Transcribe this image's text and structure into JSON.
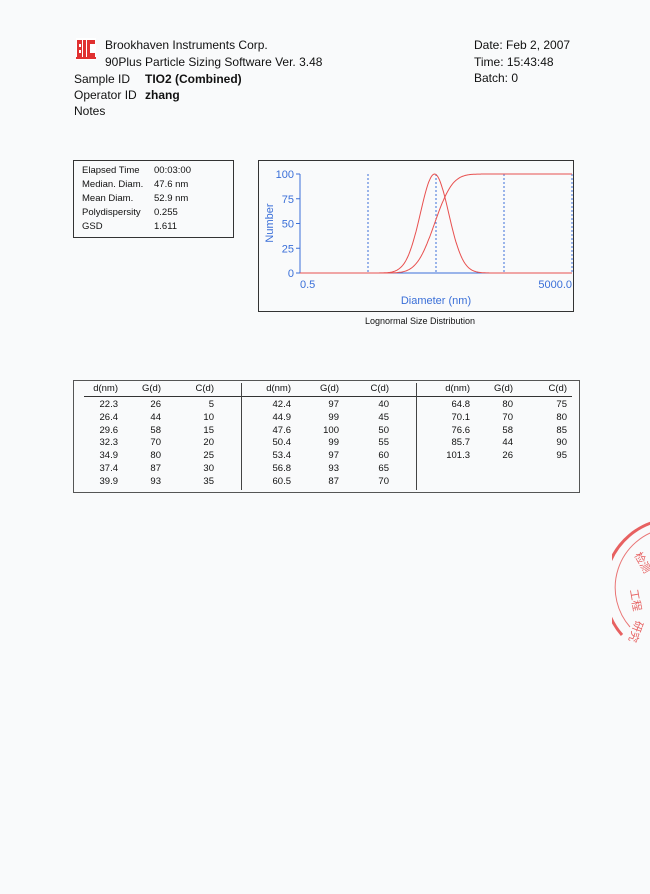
{
  "header": {
    "logo_text": "BIC",
    "company": "Brookhaven Instruments Corp.",
    "software": "90Plus Particle Sizing Software Ver. 3.48",
    "date": "Date: Feb 2, 2007",
    "time": "Time: 15:43:48",
    "batch": "Batch: 0",
    "sample_id_label": "Sample ID",
    "sample_id": "TIO2 (Combined)",
    "operator_id_label": "Operator ID",
    "operator_id": "zhang",
    "notes_label": "Notes"
  },
  "stats": [
    {
      "label": "Elapsed Time",
      "value": "00:03:00"
    },
    {
      "label": "Median. Diam.",
      "value": "47.6 nm"
    },
    {
      "label": "Mean Diam.",
      "value": "52.9 nm"
    },
    {
      "label": "Polydispersity",
      "value": "0.255"
    },
    {
      "label": "GSD",
      "value": "1.611"
    }
  ],
  "chart_data": {
    "type": "line",
    "title": "Lognormal Size Distribution",
    "xlabel": "Diameter (nm)",
    "ylabel": "Number",
    "x_scale": "log",
    "xlim": [
      0.5,
      5000.0
    ],
    "ylim": [
      0,
      100
    ],
    "x_tick_labels": [
      "0.5",
      "5000.0"
    ],
    "y_ticks": [
      "0",
      "25",
      "50",
      "75",
      "100"
    ],
    "x_gridlines": [
      5,
      50,
      500,
      5000
    ],
    "grid": "vertical dotted",
    "distribution": {
      "median": 47.6,
      "gsd": 1.611
    },
    "series": [
      {
        "key": "G(d)",
        "x": [
          22.3,
          26.4,
          29.6,
          32.3,
          34.9,
          37.4,
          39.9,
          42.4,
          44.9,
          47.6,
          50.4,
          53.4,
          56.8,
          60.5,
          64.8,
          70.1,
          76.6,
          85.7,
          101.3
        ],
        "values": [
          26,
          44,
          58,
          70,
          80,
          87,
          93,
          97,
          99,
          100,
          99,
          97,
          93,
          87,
          80,
          70,
          58,
          44,
          26
        ]
      },
      {
        "key": "C(d)",
        "x": [
          22.3,
          26.4,
          29.6,
          32.3,
          34.9,
          37.4,
          39.9,
          42.4,
          44.9,
          47.6,
          50.4,
          53.4,
          56.8,
          60.5,
          64.8,
          70.1,
          76.6,
          85.7,
          101.3
        ],
        "values": [
          5,
          10,
          15,
          20,
          25,
          30,
          35,
          40,
          45,
          50,
          55,
          60,
          65,
          70,
          75,
          80,
          85,
          90,
          95
        ]
      }
    ],
    "colors": {
      "axis": "#3a6fd8",
      "curve": "#e8504f"
    }
  },
  "table": {
    "headers": [
      "d(nm)",
      "G(d)",
      "C(d)"
    ],
    "groups": [
      [
        [
          "22.3",
          "26",
          "5"
        ],
        [
          "26.4",
          "44",
          "10"
        ],
        [
          "29.6",
          "58",
          "15"
        ],
        [
          "32.3",
          "70",
          "20"
        ],
        [
          "34.9",
          "80",
          "25"
        ],
        [
          "37.4",
          "87",
          "30"
        ],
        [
          "39.9",
          "93",
          "35"
        ]
      ],
      [
        [
          "42.4",
          "97",
          "40"
        ],
        [
          "44.9",
          "99",
          "45"
        ],
        [
          "47.6",
          "100",
          "50"
        ],
        [
          "50.4",
          "99",
          "55"
        ],
        [
          "53.4",
          "97",
          "60"
        ],
        [
          "56.8",
          "93",
          "65"
        ],
        [
          "60.5",
          "87",
          "70"
        ]
      ],
      [
        [
          "64.8",
          "80",
          "75"
        ],
        [
          "70.1",
          "70",
          "80"
        ],
        [
          "76.6",
          "58",
          "85"
        ],
        [
          "85.7",
          "44",
          "90"
        ],
        [
          "101.3",
          "26",
          "95"
        ]
      ]
    ]
  }
}
